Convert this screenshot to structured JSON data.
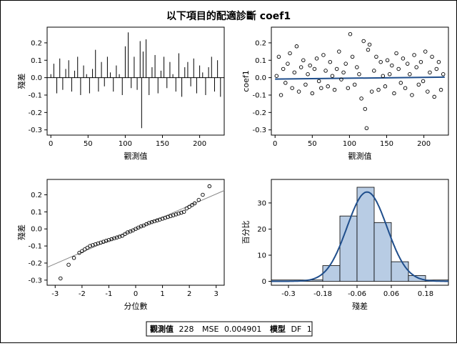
{
  "figure": {
    "title": "以下項目的配適診斷 coef1",
    "stats_box": {
      "n_label": "觀測值",
      "n_value": "228",
      "mse_label": "MSE",
      "mse_value": "0.004901",
      "model_label": "模型",
      "df_label": "DF",
      "df_value": "1"
    }
  },
  "chart_data": [
    {
      "id": "residual-by-obs",
      "type": "line",
      "xlabel": "觀測值",
      "ylabel": "殘差",
      "xlim": [
        -5,
        233
      ],
      "ylim": [
        -0.33,
        0.29
      ],
      "xticks": [
        0,
        50,
        100,
        150,
        200
      ],
      "yticks": [
        -0.3,
        -0.2,
        -0.1,
        0.0,
        0.1,
        0.2
      ],
      "series": [
        {
          "color": "#000000",
          "x": [
            0,
            4,
            8,
            12,
            16,
            20,
            24,
            28,
            32,
            36,
            40,
            44,
            48,
            52,
            56,
            60,
            64,
            68,
            72,
            76,
            80,
            84,
            88,
            92,
            96,
            100,
            104,
            108,
            112,
            116,
            120,
            122,
            124,
            128,
            132,
            136,
            140,
            144,
            148,
            152,
            156,
            160,
            164,
            168,
            172,
            176,
            180,
            184,
            188,
            192,
            196,
            200,
            204,
            208,
            212,
            216,
            220,
            224,
            228
          ],
          "y": [
            0.02,
            0.08,
            -0.09,
            0.11,
            -0.07,
            0.05,
            0.1,
            -0.08,
            0.04,
            0.12,
            -0.1,
            0.07,
            0.02,
            -0.09,
            0.05,
            0.16,
            -0.08,
            0.09,
            -0.05,
            0.12,
            0.03,
            -0.08,
            0.07,
            0.02,
            -0.1,
            0.18,
            0.26,
            -0.06,
            0.12,
            -0.07,
            0.21,
            -0.29,
            0.15,
            0.22,
            -0.1,
            0.06,
            0.13,
            -0.09,
            0.04,
            0.12,
            -0.06,
            0.09,
            0.02,
            -0.08,
            0.14,
            -0.11,
            0.06,
            0.09,
            -0.05,
            0.11,
            -0.09,
            0.07,
            0.03,
            -0.1,
            0.06,
            0.12,
            -0.08,
            0.1,
            -0.11
          ]
        }
      ],
      "reference_line": 0.0
    },
    {
      "id": "coef1-by-obs",
      "type": "scatter",
      "xlabel": "觀測值",
      "ylabel": "coef1",
      "xlim": [
        -5,
        233
      ],
      "ylim": [
        -0.33,
        0.29
      ],
      "xticks": [
        0,
        50,
        100,
        150,
        200
      ],
      "yticks": [
        -0.3,
        -0.2,
        -0.1,
        0.0,
        0.1,
        0.2
      ],
      "fit_line": {
        "color": "#1f4e8c",
        "x": [
          0,
          228
        ],
        "y": [
          -0.008,
          0.003
        ]
      },
      "series": [
        {
          "marker": "circle",
          "x": [
            2,
            5,
            8,
            11,
            14,
            17,
            20,
            23,
            26,
            29,
            32,
            35,
            38,
            41,
            44,
            47,
            50,
            53,
            56,
            59,
            62,
            65,
            68,
            71,
            74,
            77,
            80,
            83,
            86,
            89,
            92,
            95,
            98,
            101,
            104,
            107,
            110,
            113,
            116,
            119,
            121,
            123,
            125,
            127,
            130,
            133,
            136,
            139,
            142,
            145,
            148,
            151,
            154,
            157,
            160,
            163,
            166,
            169,
            172,
            175,
            178,
            181,
            184,
            187,
            190,
            193,
            196,
            199,
            202,
            205,
            208,
            211,
            214,
            217,
            220,
            223,
            226
          ],
          "y": [
            0.01,
            0.12,
            -0.1,
            0.05,
            -0.03,
            0.08,
            0.14,
            -0.06,
            0.03,
            0.18,
            -0.08,
            0.06,
            0.1,
            -0.04,
            0.02,
            0.07,
            -0.09,
            0.05,
            0.11,
            -0.02,
            -0.06,
            0.13,
            0.04,
            -0.05,
            0.09,
            0.01,
            -0.07,
            0.05,
            0.15,
            -0.01,
            0.03,
            0.08,
            -0.06,
            0.25,
            0.12,
            -0.04,
            0.06,
            0.02,
            -0.12,
            0.21,
            -0.18,
            -0.29,
            0.16,
            0.19,
            -0.08,
            0.04,
            0.12,
            -0.07,
            0.09,
            0.01,
            -0.05,
            0.1,
            0.02,
            0.07,
            -0.09,
            0.14,
            0.05,
            -0.03,
            0.11,
            -0.06,
            0.08,
            0.02,
            -0.1,
            0.13,
            0.06,
            -0.04,
            0.09,
            -0.02,
            0.15,
            -0.08,
            0.03,
            0.12,
            -0.11,
            0.05,
            0.09,
            -0.07,
            0.02
          ]
        }
      ]
    },
    {
      "id": "qq-plot",
      "type": "scatter",
      "xlabel": "分位數",
      "ylabel": "殘差",
      "xlim": [
        -3.3,
        3.3
      ],
      "ylim": [
        -0.33,
        0.29
      ],
      "xticks": [
        -3,
        -2,
        -1,
        0,
        1,
        2,
        3
      ],
      "yticks": [
        -0.3,
        -0.2,
        -0.1,
        0.0,
        0.1,
        0.2
      ],
      "reference": {
        "color": "#888888",
        "x": [
          -3.3,
          3.3
        ],
        "y": [
          -0.225,
          0.225
        ]
      },
      "series": [
        {
          "marker": "circle",
          "x": [
            -2.8,
            -2.5,
            -2.3,
            -2.1,
            -2.0,
            -1.9,
            -1.8,
            -1.7,
            -1.6,
            -1.5,
            -1.4,
            -1.3,
            -1.2,
            -1.1,
            -1.0,
            -0.9,
            -0.8,
            -0.7,
            -0.6,
            -0.5,
            -0.4,
            -0.3,
            -0.2,
            -0.1,
            0.0,
            0.1,
            0.2,
            0.3,
            0.4,
            0.5,
            0.6,
            0.7,
            0.8,
            0.9,
            1.0,
            1.1,
            1.2,
            1.3,
            1.4,
            1.5,
            1.6,
            1.7,
            1.8,
            1.9,
            2.0,
            2.1,
            2.2,
            2.35,
            2.5,
            2.75
          ],
          "y": [
            -0.29,
            -0.21,
            -0.17,
            -0.14,
            -0.13,
            -0.12,
            -0.11,
            -0.1,
            -0.095,
            -0.09,
            -0.085,
            -0.08,
            -0.075,
            -0.07,
            -0.065,
            -0.06,
            -0.055,
            -0.05,
            -0.045,
            -0.04,
            -0.03,
            -0.02,
            -0.015,
            -0.008,
            0.0,
            0.008,
            0.015,
            0.02,
            0.028,
            0.035,
            0.04,
            0.045,
            0.05,
            0.055,
            0.06,
            0.065,
            0.07,
            0.075,
            0.08,
            0.085,
            0.09,
            0.095,
            0.1,
            0.12,
            0.13,
            0.14,
            0.15,
            0.17,
            0.2,
            0.25
          ]
        }
      ]
    },
    {
      "id": "residual-histogram",
      "type": "bar",
      "xlabel": "殘差",
      "ylabel": "百分比",
      "xlim": [
        -0.36,
        0.26
      ],
      "ylim": [
        -1.5,
        39
      ],
      "xticks": [
        -0.3,
        -0.18,
        -0.06,
        0.06,
        0.18
      ],
      "xtick_labels": [
        "-0.3",
        "-0.18",
        "-0.06",
        "0.06",
        "0.18"
      ],
      "yticks": [
        0,
        10,
        20,
        30
      ],
      "bar_color": "#b8cce4",
      "bins": [
        {
          "x0": -0.36,
          "x1": -0.18,
          "value": 0.5
        },
        {
          "x0": -0.18,
          "x1": -0.12,
          "value": 6
        },
        {
          "x0": -0.12,
          "x1": -0.06,
          "value": 25
        },
        {
          "x0": -0.06,
          "x1": 0.0,
          "value": 36
        },
        {
          "x0": 0.0,
          "x1": 0.06,
          "value": 22.5
        },
        {
          "x0": 0.06,
          "x1": 0.12,
          "value": 7.5
        },
        {
          "x0": 0.12,
          "x1": 0.18,
          "value": 2.2
        },
        {
          "x0": 0.18,
          "x1": 0.26,
          "value": 0.5
        }
      ],
      "density": {
        "color": "#1f4e8c",
        "mean": -0.025,
        "sd": 0.07
      }
    }
  ]
}
